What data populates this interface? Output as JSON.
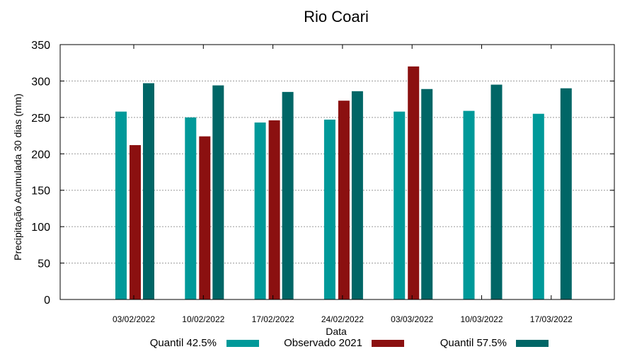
{
  "chart_data": {
    "type": "bar",
    "title": "Rio Coari",
    "xlabel": "Data",
    "ylabel": "Precipitação Acumulada 30 dias (mm)",
    "ylim": [
      0,
      350
    ],
    "yticks": [
      "0",
      "50",
      "100",
      "150",
      "200",
      "250",
      "300",
      "350"
    ],
    "grid": true,
    "legend_position": "bottom",
    "categories": [
      "03/02/2022",
      "10/02/2022",
      "17/02/2022",
      "24/02/2022",
      "03/03/2022",
      "10/03/2022",
      "17/03/2022"
    ],
    "series": [
      {
        "name": "Quantil 42.5%",
        "color": "#009999",
        "values": [
          258,
          250,
          243,
          247,
          258,
          259,
          255
        ]
      },
      {
        "name": "Observado 2021",
        "color": "#8B1010",
        "values": [
          212,
          224,
          246,
          273,
          320,
          null,
          null
        ]
      },
      {
        "name": "Quantil 57.5%",
        "color": "#006666",
        "values": [
          297,
          294,
          285,
          286,
          289,
          295,
          290
        ]
      }
    ]
  }
}
